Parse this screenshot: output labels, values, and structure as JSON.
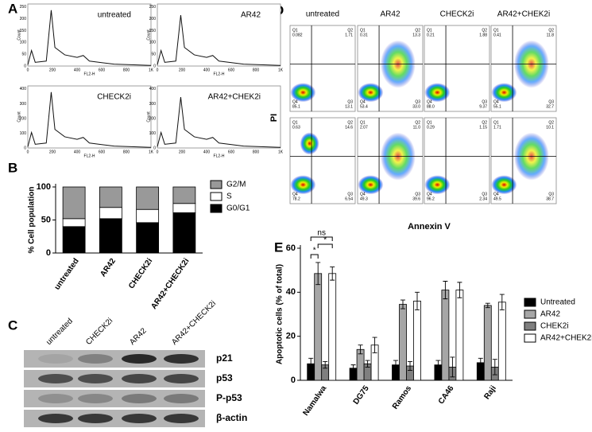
{
  "panel_labels": [
    "A",
    "B",
    "C",
    "D",
    "E"
  ],
  "panel_a": {
    "x_axis_label": "FL2-H",
    "y_axis_label": "Count",
    "x_ticks": [
      0,
      200,
      400,
      600,
      800,
      "1K"
    ],
    "y_ticks_top": [
      0,
      50,
      100,
      150,
      200,
      250
    ],
    "y_ticks_bottom": [
      0,
      100,
      200,
      300,
      400
    ],
    "plots": [
      "untreated",
      "AR42",
      "CHECK2i",
      "AR42+CHEK2i"
    ]
  },
  "panel_c": {
    "columns": [
      "untreated",
      "CHECK2i",
      "AR42",
      "AR42+CHECK2i"
    ],
    "rows": [
      "p21",
      "p53",
      "P-p53",
      "β-actin"
    ]
  },
  "panel_d": {
    "y_axis_label": "PI",
    "x_axis_label": "Annexin V",
    "quadrant_names": [
      "Q1",
      "Q2",
      "Q4",
      "Q3"
    ],
    "columns": [
      "untreated",
      "AR42",
      "CHECK2i",
      "AR42+CHEK2i"
    ],
    "plots": [
      [
        "0.082",
        "1.71",
        "85.1",
        "13.1"
      ],
      [
        "0.31",
        "13.3",
        "53.4",
        "33.0"
      ],
      [
        "0.21",
        "1.88",
        "88.0",
        "9.37"
      ],
      [
        "0.41",
        "11.8",
        "55.1",
        "32.7"
      ],
      [
        "0.63",
        "14.6",
        "78.2",
        "6.54"
      ],
      [
        "2.07",
        "11.0",
        "49.3",
        "39.6"
      ],
      [
        "0.29",
        "1.15",
        "96.2",
        "2.34"
      ],
      [
        "1.71",
        "10.1",
        "49.5",
        "38.7"
      ]
    ]
  },
  "chart_data": [
    {
      "type": "stacked-bar",
      "y_axis_label": "% Cell population",
      "categories": [
        "untreated",
        "AR42",
        "CHECK2i",
        "AR42+CHECK2i"
      ],
      "ylim": [
        0,
        100
      ],
      "yticks": [
        0,
        50,
        100
      ],
      "series": [
        {
          "name": "G0/G1",
          "color": "#000000",
          "values": [
            40,
            52,
            46,
            61
          ]
        },
        {
          "name": "S",
          "color": "#ffffff",
          "values": [
            12,
            17,
            20,
            14
          ]
        },
        {
          "name": "G2/M",
          "color": "#999999",
          "values": [
            48,
            31,
            34,
            25
          ]
        }
      ]
    },
    {
      "type": "grouped-bar",
      "y_axis_label": "Apoptotic cells (% of total)",
      "categories": [
        "Namalwa",
        "DG75",
        "Ramos",
        "CA46",
        "Raji"
      ],
      "ylim": [
        0,
        60
      ],
      "yticks": [
        0,
        20,
        40,
        60
      ],
      "series": [
        {
          "name": "Untreated",
          "color": "#000000",
          "values": [
            7.5,
            5.5,
            7,
            7,
            8
          ],
          "errors": [
            2.5,
            1.5,
            2,
            2,
            2
          ]
        },
        {
          "name": "AR42",
          "color": "#a6a6a6",
          "values": [
            48.5,
            14,
            34.5,
            41,
            34
          ],
          "errors": [
            5,
            2,
            2,
            4,
            1
          ]
        },
        {
          "name": "CHEK2i",
          "color": "#7f7f7f",
          "values": [
            7,
            7.5,
            6.5,
            6,
            6
          ],
          "errors": [
            1.5,
            1.5,
            2,
            4.5,
            3.5
          ]
        },
        {
          "name": "AR42+CHEK2i",
          "color": "#ffffff",
          "values": [
            48.5,
            16,
            36,
            41,
            35.5
          ],
          "errors": [
            3,
            3.5,
            4,
            3.5,
            3.5
          ]
        }
      ],
      "annotations": [
        "*",
        "*",
        "ns"
      ]
    }
  ]
}
